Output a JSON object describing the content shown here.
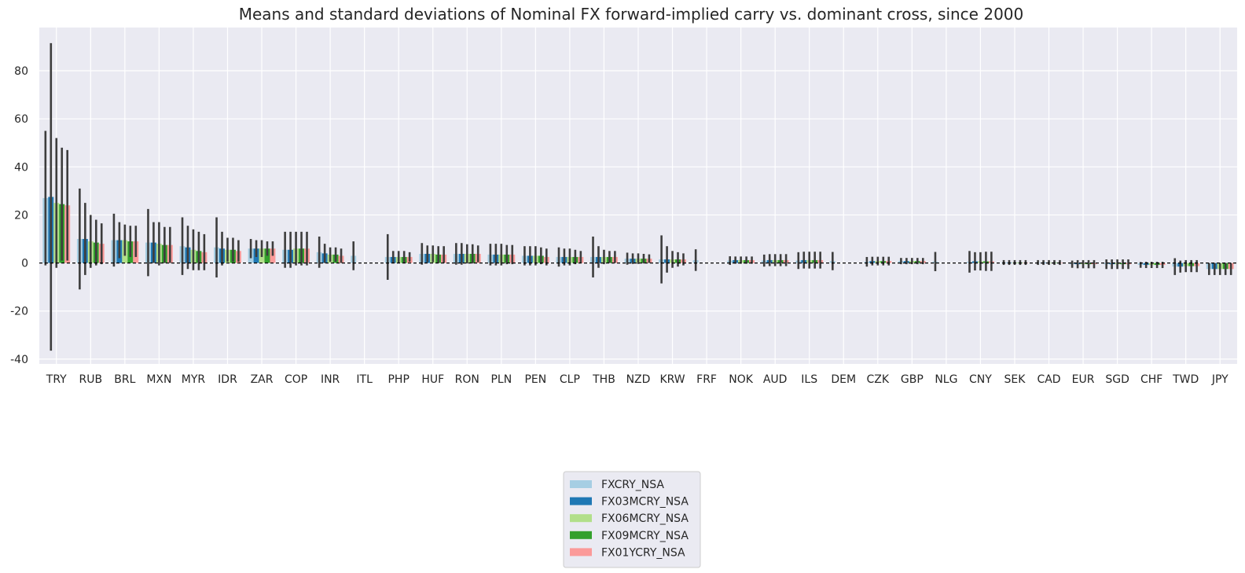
{
  "chart_data": {
    "type": "bar",
    "title": "Means and standard deviations of Nominal FX forward-implied carry vs. dominant cross, since 2000",
    "xlabel": "",
    "ylabel": "",
    "ylim": [
      -42,
      98
    ],
    "yticks": [
      -40,
      -20,
      0,
      20,
      40,
      60,
      80
    ],
    "grid": true,
    "legend_position": "bottom-center",
    "reference_line": 0,
    "categories": [
      "TRY",
      "RUB",
      "BRL",
      "MXN",
      "MYR",
      "IDR",
      "ZAR",
      "COP",
      "INR",
      "ITL",
      "PHP",
      "HUF",
      "RON",
      "PLN",
      "PEN",
      "CLP",
      "THB",
      "NZD",
      "KRW",
      "FRF",
      "NOK",
      "AUD",
      "ILS",
      "DEM",
      "CZK",
      "GBP",
      "NLG",
      "CNY",
      "SEK",
      "CAD",
      "EUR",
      "SGD",
      "CHF",
      "TWD",
      "JPY"
    ],
    "series": [
      {
        "name": "FXCRY_NSA",
        "color": "#a6cee3",
        "values": [
          27.0,
          10.0,
          9.5,
          8.5,
          7.0,
          6.5,
          6.0,
          5.5,
          4.5,
          3.0,
          2.5,
          3.8,
          3.8,
          3.5,
          3.0,
          2.5,
          2.5,
          1.8,
          1.5,
          1.2,
          1.0,
          1.0,
          1.0,
          0.8,
          0.5,
          0.8,
          0.6,
          0.5,
          0.2,
          0.2,
          -0.5,
          -0.5,
          -0.8,
          -1.5,
          -2.5
        ],
        "errors": [
          28.0,
          21.0,
          11.0,
          14.0,
          12.0,
          12.5,
          4.0,
          7.5,
          6.5,
          6.0,
          9.5,
          4.5,
          4.5,
          4.5,
          4.0,
          4.0,
          8.5,
          2.5,
          10.0,
          4.5,
          1.8,
          2.5,
          3.5,
          3.8,
          2.0,
          1.3,
          4.0,
          4.5,
          1.0,
          1.0,
          1.5,
          2.0,
          1.2,
          3.5,
          2.5
        ]
      },
      {
        "name": "FX03MCRY_NSA",
        "color": "#1f78b4",
        "values": [
          27.5,
          10.0,
          9.5,
          8.5,
          6.5,
          6.0,
          6.0,
          5.5,
          4.0,
          null,
          2.5,
          3.8,
          3.8,
          3.5,
          3.0,
          2.5,
          2.5,
          1.8,
          1.5,
          null,
          1.2,
          1.2,
          1.2,
          null,
          0.8,
          0.8,
          null,
          0.7,
          0.2,
          0.2,
          -0.5,
          -0.5,
          -0.8,
          -1.5,
          -2.5
        ],
        "errors": [
          64.0,
          15.0,
          7.5,
          8.5,
          9.0,
          7.0,
          3.5,
          7.5,
          4.0,
          null,
          2.5,
          3.5,
          4.5,
          4.5,
          4.0,
          3.5,
          4.5,
          2.2,
          5.5,
          null,
          1.5,
          2.5,
          3.5,
          null,
          1.8,
          1.3,
          null,
          3.8,
          1.0,
          1.0,
          1.7,
          2.0,
          1.3,
          2.5,
          2.5
        ]
      },
      {
        "name": "FX06MCRY_NSA",
        "color": "#b2df8a",
        "values": [
          25.0,
          9.0,
          9.5,
          8.0,
          5.5,
          5.5,
          6.0,
          6.0,
          3.5,
          null,
          2.5,
          3.8,
          3.8,
          3.5,
          3.0,
          2.5,
          2.5,
          1.8,
          1.5,
          null,
          1.2,
          1.2,
          1.2,
          null,
          0.8,
          0.8,
          null,
          0.7,
          0.2,
          0.2,
          -0.5,
          -0.5,
          -0.8,
          -1.3,
          -2.5
        ],
        "errors": [
          27.0,
          11.0,
          6.5,
          9.0,
          8.5,
          5.0,
          3.5,
          7.0,
          3.0,
          null,
          2.5,
          3.5,
          4.0,
          4.5,
          4.0,
          3.5,
          3.0,
          2.2,
          3.5,
          null,
          1.5,
          2.5,
          3.5,
          null,
          1.8,
          1.3,
          null,
          3.8,
          1.0,
          1.0,
          1.7,
          2.0,
          1.3,
          2.5,
          2.5
        ]
      },
      {
        "name": "FX09MCRY_NSA",
        "color": "#33a02c",
        "values": [
          24.5,
          8.5,
          9.0,
          7.5,
          5.0,
          5.5,
          6.0,
          6.0,
          3.5,
          null,
          2.5,
          3.5,
          3.8,
          3.5,
          3.0,
          2.5,
          2.5,
          1.8,
          1.5,
          null,
          1.2,
          1.2,
          1.2,
          null,
          0.8,
          0.8,
          null,
          0.7,
          0.2,
          0.2,
          -0.5,
          -0.5,
          -0.8,
          -1.3,
          -2.5
        ],
        "errors": [
          23.5,
          9.5,
          6.5,
          7.5,
          8.0,
          5.0,
          3.0,
          7.0,
          3.0,
          null,
          2.5,
          3.5,
          4.0,
          4.0,
          3.5,
          3.0,
          2.5,
          2.0,
          3.0,
          null,
          1.5,
          2.5,
          3.5,
          null,
          1.8,
          1.3,
          null,
          4.0,
          1.0,
          1.0,
          1.7,
          2.0,
          1.3,
          2.5,
          2.5
        ]
      },
      {
        "name": "FX01YCRY_NSA",
        "color": "#fb9a99",
        "values": [
          24.0,
          8.0,
          9.0,
          7.5,
          4.5,
          5.0,
          6.0,
          6.0,
          3.0,
          null,
          2.5,
          3.5,
          3.8,
          3.5,
          2.5,
          2.5,
          2.5,
          1.8,
          1.5,
          null,
          1.2,
          1.2,
          1.2,
          null,
          0.8,
          0.8,
          null,
          0.7,
          0.2,
          0.2,
          -0.5,
          -0.5,
          -0.8,
          -1.3,
          -2.5
        ],
        "errors": [
          23.0,
          8.5,
          6.5,
          7.5,
          7.5,
          4.5,
          3.0,
          7.0,
          3.0,
          null,
          2.0,
          3.5,
          3.5,
          4.0,
          3.5,
          2.5,
          2.5,
          1.8,
          2.5,
          null,
          1.5,
          2.5,
          3.5,
          null,
          1.8,
          1.3,
          null,
          4.0,
          1.0,
          1.0,
          1.7,
          2.0,
          1.3,
          2.5,
          2.5
        ]
      }
    ]
  }
}
